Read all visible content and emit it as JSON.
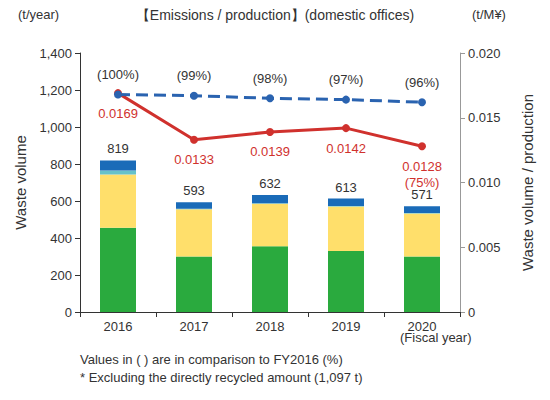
{
  "chart_data": {
    "type": "bar",
    "title": "【Emissions / production】(domestic offices)",
    "ylabel": "Waste volume",
    "yunit": "(t/year)",
    "y2label": "Waste volume / production",
    "y2unit": "(t/M¥)",
    "xlabel": "(Fiscal year)",
    "notes": [
      "Values in ( ) are in comparison to FY2016 (%)",
      "* Excluding the directly recycled amount (1,097 t)"
    ],
    "categories": [
      "2016",
      "2017",
      "2018",
      "2019",
      "2020"
    ],
    "stacked": true,
    "grid": false,
    "totals": [
      819,
      593,
      632,
      613,
      571
    ],
    "series": [
      {
        "type": "bar",
        "color": "#2aaa3e",
        "values": [
          455,
          300,
          355,
          330,
          300
        ]
      },
      {
        "type": "bar",
        "color": "#ffdf6b",
        "values": [
          288,
          255,
          230,
          240,
          232
        ]
      },
      {
        "type": "bar",
        "color": "#66c2c9",
        "values": [
          22,
          3,
          3,
          3,
          3
        ]
      },
      {
        "type": "bar",
        "color": "#1a6bb8",
        "values": [
          54,
          35,
          44,
          40,
          36
        ]
      },
      {
        "type": "line",
        "axis": "y2",
        "color": "#d0312d",
        "marker": "circle",
        "line_style": "solid",
        "data_labels": true,
        "values": [
          0.0169,
          0.0133,
          0.0139,
          0.0142,
          0.0128
        ],
        "annotations": [
          null,
          null,
          null,
          null,
          "(75%)"
        ]
      },
      {
        "type": "line",
        "axis": "y2",
        "color": "#2a63b0",
        "marker": "circle",
        "line_style": "dashed",
        "data_labels": false,
        "values": [
          0.0168,
          0.0167,
          0.0165,
          0.0164,
          0.0162
        ],
        "annotations": [
          "(100%)",
          "(99%)",
          "(98%)",
          "(97%)",
          "(96%)"
        ]
      }
    ],
    "ylim": [
      0,
      1400
    ],
    "yticks": [
      0,
      200,
      400,
      600,
      800,
      {
        "value": 1000,
        "label": "1,000"
      },
      {
        "value": 1200,
        "label": "1,200"
      },
      {
        "value": 1400,
        "label": "1,400"
      }
    ],
    "y2lim": [
      0,
      0.02
    ],
    "y2ticks": [
      0,
      0.005,
      {
        "value": 0.01,
        "label": "0.010"
      },
      0.015,
      {
        "value": 0.02,
        "label": "0.020"
      }
    ]
  }
}
